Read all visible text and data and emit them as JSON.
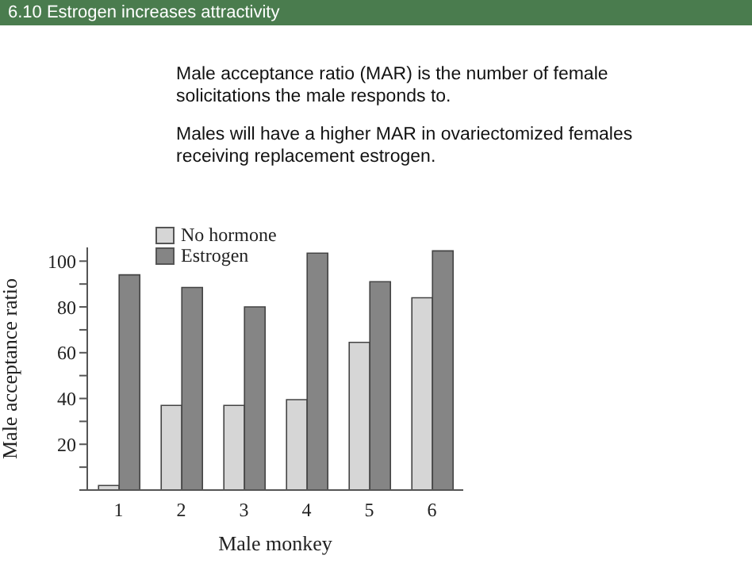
{
  "chart_data": {
    "type": "bar",
    "title": "6.10  Estrogen increases attractivity",
    "annotations": [
      "Male acceptance ratio (MAR) is the number of female solicitations the male responds to.",
      "Males will have a higher MAR in ovariectomized females receiving replacement estrogen."
    ],
    "xlabel": "Male monkey",
    "ylabel": "Male acceptance ratio",
    "categories": [
      "1",
      "2",
      "3",
      "4",
      "5",
      "6"
    ],
    "series": [
      {
        "name": "No hormone",
        "color": "#d6d6d6",
        "values": [
          2,
          37,
          37,
          39.5,
          64.5,
          84
        ]
      },
      {
        "name": "Estrogen",
        "color": "#858585",
        "values": [
          94,
          88.5,
          80,
          103.5,
          91,
          104.5
        ]
      }
    ],
    "ylim": [
      0,
      106
    ],
    "yticks": [
      {
        "value": 0,
        "label": null
      },
      {
        "value": 10,
        "label": null
      },
      20,
      {
        "value": 30,
        "label": null
      },
      40,
      {
        "value": 50,
        "label": null
      },
      60,
      {
        "value": 70,
        "label": null
      },
      80,
      {
        "value": 90,
        "label": null
      },
      100
    ],
    "grid": false,
    "legend": "top left"
  }
}
